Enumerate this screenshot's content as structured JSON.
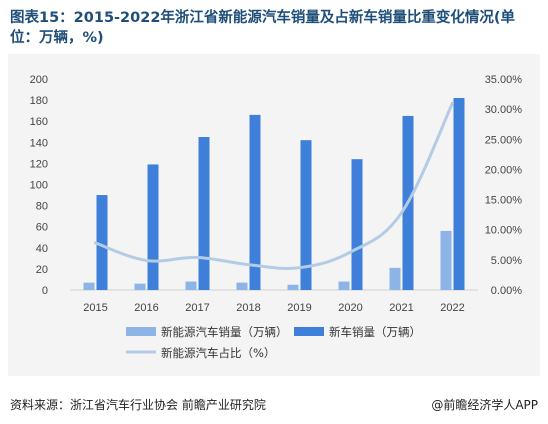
{
  "title": "图表15：2015-2022年浙江省新能源汽车销量及占新车销量比重变化情况(单位：万辆，%)",
  "source": "资料来源：浙江省汽车行业协会 前瞻产业研究院",
  "brand": "@前瞻经济学人APP",
  "colors": {
    "nev_bar": "#8db4e7",
    "total_bar": "#3d7fd9",
    "share_line": "#b4cbe6",
    "background": "#f4f4f4"
  },
  "chart_data": {
    "type": "bar",
    "categories": [
      "2015",
      "2016",
      "2017",
      "2018",
      "2019",
      "2020",
      "2021",
      "2022"
    ],
    "series": [
      {
        "name": "新能源汽车销量（万辆）",
        "type": "bar",
        "axis": "left",
        "values": [
          7,
          6,
          8,
          7,
          5,
          8,
          21,
          56
        ]
      },
      {
        "name": "新车销量（万辆）",
        "type": "bar",
        "axis": "left",
        "values": [
          90,
          119,
          145,
          166,
          142,
          124,
          165,
          182
        ]
      },
      {
        "name": "新能源汽车占比（%）",
        "type": "line",
        "axis": "right",
        "values": [
          7.8,
          4.9,
          5.4,
          4.2,
          3.7,
          6.3,
          12.8,
          31.0
        ]
      }
    ],
    "y_left": {
      "min": 0,
      "max": 200,
      "ticks": [
        "0",
        "20",
        "40",
        "60",
        "80",
        "100",
        "120",
        "140",
        "160",
        "180",
        "200"
      ]
    },
    "y_right": {
      "min": 0,
      "max": 35,
      "ticks": [
        "0.00%",
        "5.00%",
        "10.00%",
        "15.00%",
        "20.00%",
        "25.00%",
        "30.00%",
        "35.00%"
      ]
    },
    "legend": [
      "新能源汽车销量（万辆）",
      "新车销量（万辆）",
      "新能源汽车占比（%）"
    ],
    "legend_position": "bottom",
    "grid": false
  }
}
